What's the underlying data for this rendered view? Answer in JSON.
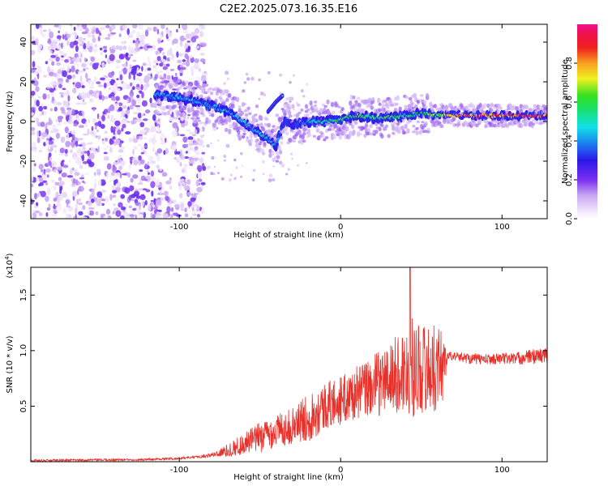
{
  "title": "C2E2.2025.073.16.35.E16",
  "chart_data": [
    {
      "type": "heatmap",
      "name": "spectrogram",
      "xlabel": "Height of straight line (km)",
      "ylabel": "Frequency (Hz)",
      "xlim": [
        -192,
        128
      ],
      "ylim": [
        -49,
        49
      ],
      "xticks": [
        -100,
        0,
        100
      ],
      "yticks": [
        -40,
        -20,
        0,
        20,
        40
      ],
      "colorbar": {
        "label": "Normalized spectral amplitude",
        "range": [
          0.0,
          1.0
        ],
        "ticks": [
          "0.0",
          "0.2",
          "0.4",
          "0.6",
          "0.8"
        ],
        "colormap": "rainbow (magenta-violet-blue-cyan-green-yellow-red-magenta)"
      },
      "ridge": {
        "description": "main spectral ridge center frequency vs height",
        "x": [
          -115,
          -100,
          -90,
          -80,
          -70,
          -60,
          -50,
          -40,
          -35,
          -30,
          -20,
          -10,
          0,
          10,
          20,
          30,
          40,
          50,
          60,
          70,
          80,
          90,
          100,
          110,
          120,
          128
        ],
        "y": [
          14,
          12,
          10,
          8,
          5,
          0,
          -6,
          -12,
          0,
          -2,
          0,
          0,
          1,
          3,
          2,
          2,
          3,
          4,
          3,
          3,
          3,
          3,
          3,
          3,
          3,
          3
        ],
        "amplitude": [
          0.45,
          0.45,
          0.45,
          0.4,
          0.45,
          0.45,
          0.5,
          0.45,
          0.3,
          0.3,
          0.45,
          0.55,
          0.6,
          0.7,
          0.6,
          0.6,
          0.6,
          0.6,
          0.7,
          0.85,
          0.85,
          0.9,
          0.9,
          0.9,
          0.9,
          0.9
        ]
      },
      "branch": {
        "description": "secondary upward branch",
        "x": [
          -45,
          -40,
          -36
        ],
        "y": [
          5,
          10,
          13
        ]
      },
      "noise_region": {
        "x": [
          -192,
          -90
        ],
        "amplitude": 0.15
      },
      "colors": {
        "low": "#e6d8f7",
        "mid": "#8a3cf2",
        "ridge": "#3a18e8",
        "peak": "#e01010"
      }
    },
    {
      "type": "line",
      "name": "snr",
      "xlabel": "Height of straight line (km)",
      "ylabel": "SNR (10 * v/v)",
      "y_scale_label": "(x10",
      "y_scale_exp": "4",
      "xlim": [
        -192,
        128
      ],
      "ylim": [
        0,
        1.75
      ],
      "xticks": [
        -100,
        0,
        100
      ],
      "yticks": [
        0.5,
        1.0,
        1.5
      ],
      "series": [
        {
          "color": "#e8302a",
          "envelope_x": [
            -192,
            -120,
            -100,
            -90,
            -80,
            -70,
            -60,
            -50,
            -40,
            -30,
            -20,
            -10,
            0,
            10,
            20,
            30,
            40,
            45,
            50,
            55,
            60,
            64,
            66,
            70,
            80,
            90,
            100,
            110,
            120,
            128
          ],
          "envelope_y": [
            0.01,
            0.02,
            0.03,
            0.04,
            0.06,
            0.1,
            0.16,
            0.22,
            0.28,
            0.32,
            0.4,
            0.5,
            0.55,
            0.62,
            0.68,
            0.75,
            0.82,
            0.85,
            0.85,
            0.83,
            0.85,
            0.87,
            0.95,
            0.95,
            0.93,
            0.92,
            0.93,
            0.93,
            0.95,
            0.96
          ],
          "spread_y": [
            0.01,
            0.01,
            0.01,
            0.01,
            0.02,
            0.06,
            0.1,
            0.14,
            0.15,
            0.16,
            0.22,
            0.22,
            0.22,
            0.24,
            0.28,
            0.32,
            0.4,
            0.45,
            0.42,
            0.4,
            0.38,
            0.35,
            0.04,
            0.04,
            0.05,
            0.05,
            0.05,
            0.06,
            0.07,
            0.07
          ],
          "peak_x": 43,
          "peak_y": 1.75
        }
      ]
    }
  ]
}
